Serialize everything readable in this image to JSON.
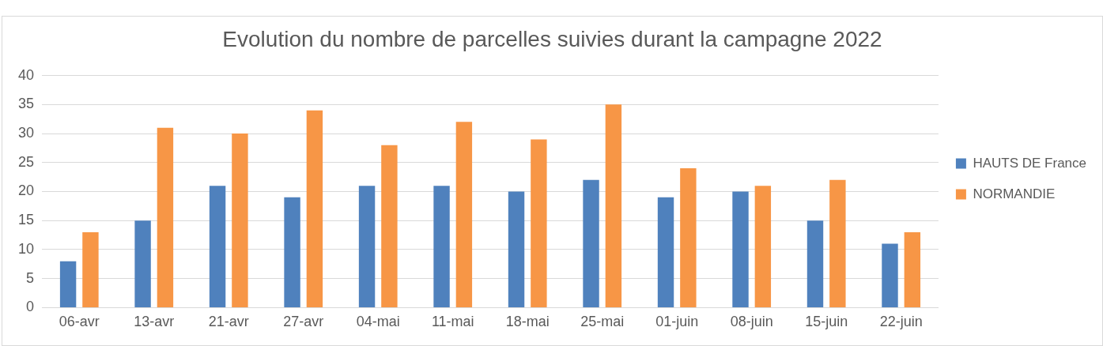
{
  "chart_data": {
    "type": "bar",
    "title": "Evolution du nombre de parcelles suivies durant la campagne 2022",
    "categories": [
      "06-avr",
      "13-avr",
      "21-avr",
      "27-avr",
      "04-mai",
      "11-mai",
      "18-mai",
      "25-mai",
      "01-juin",
      "08-juin",
      "15-juin",
      "22-juin"
    ],
    "series": [
      {
        "name": "HAUTS DE France",
        "color": "#4f81bd",
        "values": [
          8,
          15,
          21,
          19,
          21,
          21,
          20,
          22,
          19,
          20,
          15,
          11
        ]
      },
      {
        "name": "NORMANDIE",
        "color": "#f79646",
        "values": [
          13,
          31,
          30,
          34,
          28,
          32,
          29,
          35,
          24,
          21,
          22,
          13
        ]
      }
    ],
    "ylim": [
      0,
      40
    ],
    "yticks": [
      0,
      5,
      10,
      15,
      20,
      25,
      30,
      35,
      40
    ],
    "grid": "y",
    "legend": "right"
  }
}
